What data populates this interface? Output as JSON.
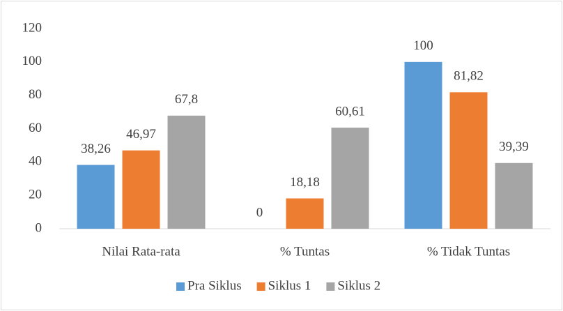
{
  "chart_data": {
    "type": "bar",
    "categories": [
      "Nilai Rata-rata",
      "% Tuntas",
      "% Tidak Tuntas"
    ],
    "series": [
      {
        "name": "Pra Siklus",
        "color": "#5b9bd5",
        "values": [
          38.26,
          0,
          100
        ],
        "value_labels": [
          "38,26",
          "0",
          "100"
        ]
      },
      {
        "name": "Siklus 1",
        "color": "#ed7d31",
        "values": [
          46.97,
          18.18,
          81.82
        ],
        "value_labels": [
          "46,97",
          "18,18",
          "81,82"
        ]
      },
      {
        "name": "Siklus 2",
        "color": "#a5a5a5",
        "values": [
          67.8,
          60.61,
          39.39
        ],
        "value_labels": [
          "67,8",
          "60,61",
          "39,39"
        ]
      }
    ],
    "ylim": [
      0,
      120
    ],
    "yticks": [
      0,
      20,
      40,
      60,
      80,
      100,
      120
    ],
    "grid": false,
    "legend": "bottom"
  }
}
